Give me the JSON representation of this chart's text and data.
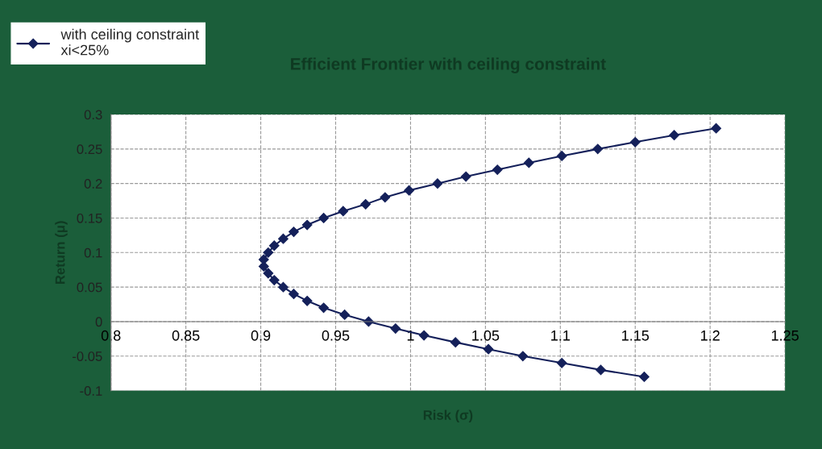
{
  "chart_data": {
    "type": "line",
    "title": "Efficient Frontier with ceiling constraint",
    "xlabel": "Risk (σ)",
    "ylabel": "Return (μ)",
    "series": [
      {
        "name": "with ceiling constraint\nxi<25%",
        "color": "#14205a",
        "x": [
          1.156,
          1.127,
          1.101,
          1.075,
          1.052,
          1.03,
          1.009,
          0.99,
          0.972,
          0.956,
          0.942,
          0.931,
          0.922,
          0.915,
          0.909,
          0.905,
          0.902,
          0.902,
          0.905,
          0.909,
          0.915,
          0.922,
          0.931,
          0.942,
          0.955,
          0.97,
          0.983,
          0.999,
          1.018,
          1.037,
          1.058,
          1.079,
          1.101,
          1.125,
          1.15,
          1.176,
          1.204
        ],
        "values": [
          -0.08,
          -0.07,
          -0.06,
          -0.05,
          -0.04,
          -0.03,
          -0.02,
          -0.01,
          0,
          0.01,
          0.02,
          0.03,
          0.04,
          0.05,
          0.06,
          0.07,
          0.08,
          0.09,
          0.1,
          0.11,
          0.12,
          0.13,
          0.14,
          0.15,
          0.16,
          0.17,
          0.18,
          0.19,
          0.2,
          0.21,
          0.22,
          0.23,
          0.24,
          0.25,
          0.26,
          0.27,
          0.28
        ]
      }
    ],
    "xlim": [
      0.8,
      1.25
    ],
    "xticks": [
      0.8,
      0.85,
      0.9,
      0.95,
      1,
      1.05,
      1.1,
      1.15,
      1.2,
      1.25
    ],
    "ylim": [
      -0.1,
      0.3
    ],
    "yticks": [
      -0.1,
      -0.05,
      0,
      0.05,
      0.1,
      0.15,
      0.2,
      0.25,
      0.3
    ],
    "grid": true,
    "legend": "top left",
    "marker": "diamond",
    "line_style": "solid"
  }
}
